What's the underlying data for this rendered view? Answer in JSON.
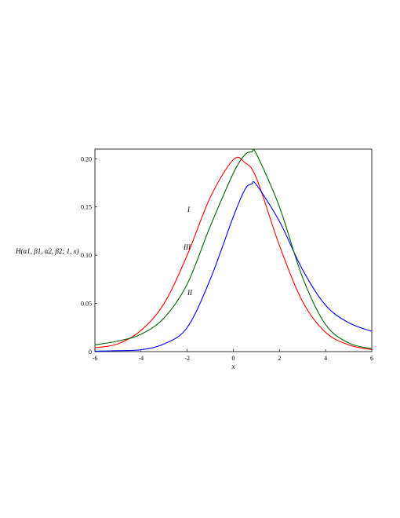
{
  "chart_data": {
    "type": "line",
    "title": "",
    "xlabel": "x",
    "ylabel": "H(α1, β1, α2, β2; 1, x)",
    "xlim": [
      -6,
      6
    ],
    "ylim": [
      0,
      0.21
    ],
    "x_ticks": [
      "-6",
      "-4",
      "-2",
      "0",
      "2",
      "4",
      "6"
    ],
    "y_ticks": [
      "0",
      "0.05",
      "0.10",
      "0.15",
      "0.20"
    ],
    "grid": false,
    "series": [
      {
        "name": "I",
        "color": "#ff0000",
        "x": [
          -6,
          -5,
          -4,
          -3,
          -2,
          -1,
          0,
          0.5,
          1,
          2,
          3,
          4,
          5,
          6
        ],
        "y": [
          0.004,
          0.008,
          0.022,
          0.05,
          0.1,
          0.16,
          0.199,
          0.196,
          0.18,
          0.11,
          0.052,
          0.02,
          0.007,
          0.002
        ]
      },
      {
        "name": "II",
        "color": "#0000ff",
        "x": [
          -6,
          -5,
          -4,
          -3,
          -2,
          -1,
          0,
          0.5,
          0.8,
          1,
          2,
          3,
          4,
          5,
          6
        ],
        "y": [
          0.0005,
          0.001,
          0.002,
          0.008,
          0.025,
          0.075,
          0.14,
          0.168,
          0.174,
          0.173,
          0.135,
          0.085,
          0.048,
          0.03,
          0.021
        ]
      },
      {
        "name": "III",
        "color": "#006400",
        "x": [
          -6,
          -5,
          -4,
          -3,
          -2,
          -1,
          0,
          0.5,
          0.8,
          1,
          2,
          3,
          4,
          5,
          6
        ],
        "y": [
          0.007,
          0.011,
          0.018,
          0.035,
          0.07,
          0.13,
          0.185,
          0.204,
          0.207,
          0.205,
          0.15,
          0.077,
          0.028,
          0.009,
          0.003
        ]
      }
    ]
  }
}
